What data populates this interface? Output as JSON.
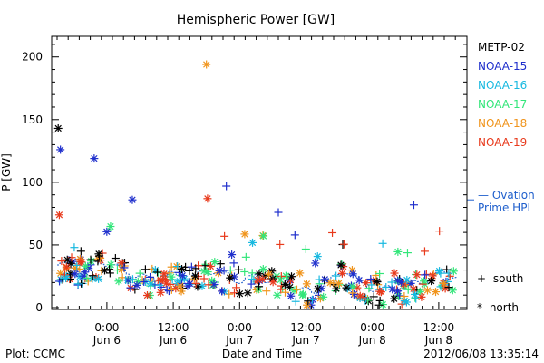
{
  "chart_data": {
    "type": "scatter",
    "title": "Hemispheric Power [GW]",
    "ylabel": "P [GW]",
    "xlabel": "Date and Time",
    "ylim": [
      0,
      215
    ],
    "yticks": [
      0,
      50,
      100,
      150,
      200
    ],
    "xlim_hours": [
      0,
      72
    ],
    "xticks": [
      {
        "hour": 9,
        "line1": "0:00",
        "line2": "Jun 6"
      },
      {
        "hour": 21,
        "line1": "12:00",
        "line2": "Jun 6"
      },
      {
        "hour": 33,
        "line1": "0:00",
        "line2": "Jun 7"
      },
      {
        "hour": 45,
        "line1": "12:00",
        "line2": "Jun 7"
      },
      {
        "hour": 57,
        "line1": "0:00",
        "line2": "Jun 8"
      },
      {
        "hour": 69,
        "line1": "12:00",
        "line2": "Jun 8"
      }
    ],
    "legend_position": "right",
    "series": [
      {
        "name": "METP-02",
        "color": "#000000"
      },
      {
        "name": "NOAA-15",
        "color": "#1f2fcc"
      },
      {
        "name": "NOAA-16",
        "color": "#18b9e0"
      },
      {
        "name": "NOAA-17",
        "color": "#33e67a"
      },
      {
        "name": "NOAA-18",
        "color": "#f0941c"
      },
      {
        "name": "NOAA-19",
        "color": "#e83a1c"
      }
    ],
    "ovation": {
      "label_line1": "— Ovation",
      "label_line2": "Prime HPI",
      "color": "#1f5fcc"
    },
    "marker_legend": [
      {
        "symbol": "+",
        "label": "south"
      },
      {
        "symbol": "*",
        "label": "north"
      }
    ],
    "highlight_points": [
      {
        "series": 0,
        "hour": 0.2,
        "value": 143,
        "marker": "*"
      },
      {
        "series": 1,
        "hour": 0.6,
        "value": 126,
        "marker": "*"
      },
      {
        "series": 5,
        "hour": 0.4,
        "value": 74,
        "marker": "*"
      },
      {
        "series": 1,
        "hour": 6.7,
        "value": 119,
        "marker": "*"
      },
      {
        "series": 1,
        "hour": 13.6,
        "value": 86,
        "marker": "*"
      },
      {
        "series": 4,
        "hour": 27.0,
        "value": 194,
        "marker": "*"
      },
      {
        "series": 5,
        "hour": 27.2,
        "value": 87,
        "marker": "*"
      },
      {
        "series": 1,
        "hour": 30.6,
        "value": 97,
        "marker": "+"
      },
      {
        "series": 1,
        "hour": 40.0,
        "value": 76,
        "marker": "+"
      },
      {
        "series": 1,
        "hour": 43.0,
        "value": 58,
        "marker": "+"
      },
      {
        "series": 1,
        "hour": 64.5,
        "value": 82,
        "marker": "+"
      }
    ]
  },
  "footer": {
    "left": "Plot: CCMC",
    "right": "2012/06/08 13:35:14"
  }
}
